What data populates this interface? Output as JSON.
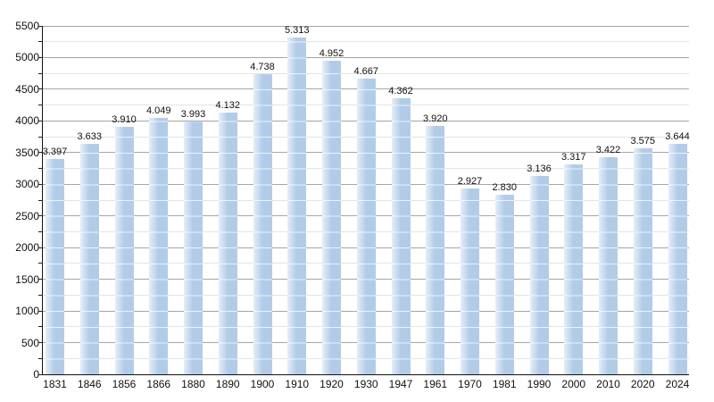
{
  "chart_data": {
    "type": "bar",
    "title": "",
    "xlabel": "",
    "ylabel": "",
    "categories": [
      "1831",
      "1846",
      "1856",
      "1866",
      "1880",
      "1890",
      "1900",
      "1910",
      "1920",
      "1930",
      "1947",
      "1961",
      "1970",
      "1981",
      "1990",
      "2000",
      "2010",
      "2020",
      "2024"
    ],
    "values": [
      3397,
      3633,
      3910,
      4049,
      3993,
      4132,
      4738,
      5313,
      4952,
      4667,
      4362,
      3920,
      2927,
      2830,
      3136,
      3317,
      3422,
      3575,
      3644
    ],
    "value_labels": [
      "3.397",
      "3.633",
      "3.910",
      "4.049",
      "3.993",
      "4.132",
      "4.738",
      "5.313",
      "4.952",
      "4.667",
      "4.362",
      "3.920",
      "2.927",
      "2.830",
      "3.136",
      "3.317",
      "3.422",
      "3.575",
      "3.644"
    ],
    "ylim": [
      0,
      5500
    ],
    "y_major_step": 500,
    "y_minor_step": 250,
    "y_tick_labels": [
      "0",
      "500",
      "1000",
      "1500",
      "2000",
      "2500",
      "3000",
      "3500",
      "4000",
      "4500",
      "5000",
      "5500"
    ],
    "grid": true,
    "legend": false,
    "colors": {
      "bar_main": "#b2cce8",
      "bar_light_edge": "#e4eef9",
      "bar_stripe": "rgba(255,255,255,0.72)",
      "grid_major": "#a6a6a6",
      "grid_minor": "#e4e4e4",
      "axis": "#111111",
      "text": "#111111",
      "background": "#ffffff"
    }
  }
}
